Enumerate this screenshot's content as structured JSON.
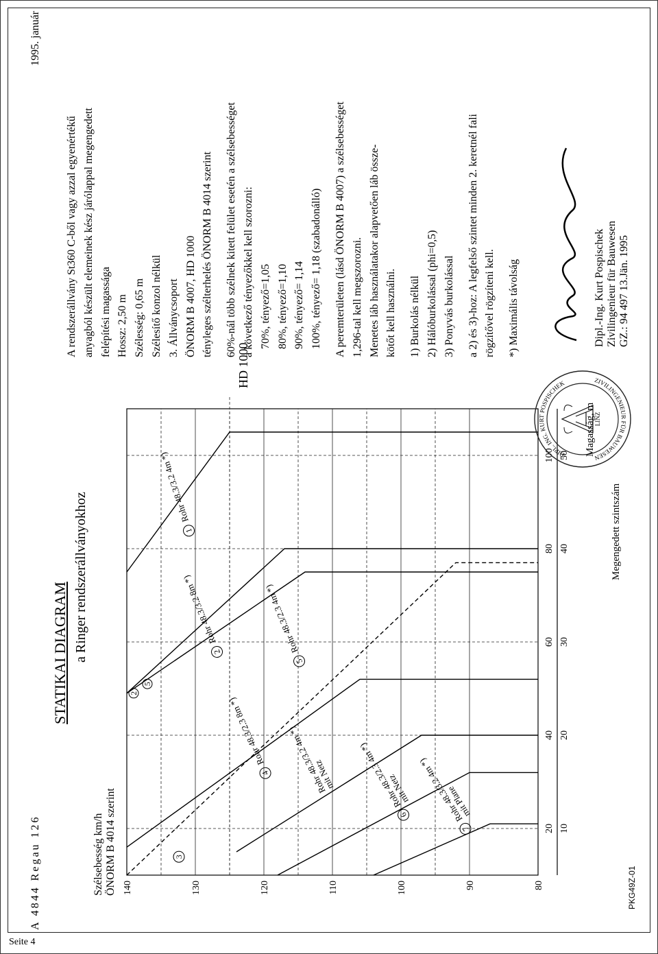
{
  "header": {
    "location": "A  4844 Regau  126",
    "date": "1995. január"
  },
  "title": "STATIKAI DIAGRAM",
  "subtitle": "a Ringer rendszerállványokhoz",
  "chart": {
    "type": "line",
    "ylabel": "Szélsebesség km/h\nÖNORM B 4014 szerint",
    "xlabel_top": "Magasság, m",
    "xlabel_bottom": "Megengedett szintszám",
    "ylim": [
      80,
      140
    ],
    "yticks": [
      80,
      90,
      100,
      110,
      120,
      130,
      140
    ],
    "xticks_top": [
      20,
      40,
      60,
      80,
      100
    ],
    "xticks_bot": [
      10,
      20,
      30,
      40,
      50
    ],
    "grid_solid_y": [
      90,
      100,
      110,
      120,
      130
    ],
    "grid_dash_x": [
      20,
      40,
      60,
      80,
      100
    ],
    "grid_dash_y": [
      95,
      105,
      115,
      125,
      135
    ],
    "hd_annotation": "HD 1000",
    "curve_labels": [
      {
        "num": "①",
        "text": "Rohr 48.3/3.2 4m *)",
        "x": 86,
        "y": 131,
        "angle": -18
      },
      {
        "num": "②",
        "text": "Rohr 48.3/3.2 8m *)",
        "x": 60,
        "y": 127,
        "angle": -22
      },
      {
        "num": "③",
        "text": "",
        "x": 16,
        "y": 132,
        "angle": 0
      },
      {
        "num": "④",
        "text": "Rohr 48.3/2.3 8m *)",
        "x": 34,
        "y": 120,
        "angle": -24
      },
      {
        "num": "⑤",
        "text": "Rohr 48.3/2.3 4m *)",
        "x": 58,
        "y": 115,
        "angle": -22
      },
      {
        "num": "",
        "text": "Rohr 48.3/3.2 4m *)\nmit Netz",
        "x": 28,
        "y": 111,
        "angle": -26
      },
      {
        "num": "⑥",
        "text": "Rohr 48.3/2.3 4m *)\nmit Netz",
        "x": 25,
        "y": 100,
        "angle": -30
      },
      {
        "num": "⑦",
        "text": "Rohr 48.3/3.2 4m *)\nmit Plane",
        "x": 22,
        "y": 91,
        "angle": -32
      }
    ],
    "curves": [
      {
        "id": 1,
        "dashed": false,
        "pts": [
          [
            75,
            140
          ],
          [
            105,
            125
          ],
          [
            105,
            80
          ]
        ]
      },
      {
        "id": 2,
        "dashed": false,
        "pts": [
          [
            49,
            140
          ],
          [
            80,
            117
          ],
          [
            80,
            80
          ]
        ]
      },
      {
        "id": 3,
        "dashed": true,
        "pts": [
          [
            10,
            140
          ],
          [
            77,
            92
          ],
          [
            77,
            80
          ]
        ]
      },
      {
        "id": 4,
        "dashed": false,
        "pts": [
          [
            16,
            140
          ],
          [
            52,
            106
          ],
          [
            52,
            80
          ]
        ]
      },
      {
        "id": 5,
        "dashed": false,
        "pts": [
          [
            49,
            140
          ],
          [
            75,
            114
          ],
          [
            75,
            80
          ]
        ]
      },
      {
        "id": 6,
        "dashed": false,
        "pts": [
          [
            15,
            124
          ],
          [
            40,
            97
          ],
          [
            40,
            80
          ]
        ]
      },
      {
        "id": 7,
        "dashed": false,
        "pts": [
          [
            10,
            118
          ],
          [
            32,
            90
          ],
          [
            32,
            80
          ]
        ]
      },
      {
        "id": 8,
        "dashed": false,
        "pts": [
          [
            10,
            104
          ],
          [
            21,
            87
          ],
          [
            21,
            80
          ]
        ]
      }
    ],
    "axis_color": "#000000",
    "grid_color": "#222222",
    "background_color": "#ffffff"
  },
  "notes": {
    "intro": [
      "A rendszerállvány St360 C-ből vagy azzal egyenértékű",
      "anyagból készült elemeinek kész járólappal megengedett",
      "felépítési magassága",
      "Hossz: 2,50 m",
      "Szélesség: 0,65 m",
      "Szélesítő konzol nélkül",
      "3. Állványcsoport",
      "ÖNORM B 4007, HD 1000",
      "tényleges szélterhelés ÖNORM B 4014 szerint"
    ],
    "factors_head": [
      "60%-nál több szélnek kitett felület esetén a szélsebességet",
      "a következő tényezőkkel kell szorozni:"
    ],
    "factors": [
      "70%, tényező=1,05",
      "80%, tényező=1,10",
      "90%, tényező= 1,14",
      "100%, tényező= 1,18 (szabadonálló)"
    ],
    "perimeter": [
      "A peremterületen (lásd ÖNORM B 4007) a szélsebességet",
      "1,296-tal kell megszorozni.",
      "Menetes láb használatakor alapvetően láb össze-",
      "kötőt kell használni."
    ],
    "cover": [
      "1) Burkolás nélkül",
      "2) Hálóburkolással (phi=0,5)",
      "3) Ponyvás burkolással"
    ],
    "anchor": [
      "a 2) és 3)-hoz: A legfelső szintet minden 2. keretnél fali",
      "rögzítővel rögzíteni kell."
    ],
    "footnote": "*) Maximális távolság"
  },
  "stamp": {
    "ring_text_top": "DIPL. ING. KURT POSPISCHEK",
    "ring_text_bot": "ZIVILINGENIEUR FÜR BAUWESEN",
    "center": "LINZ"
  },
  "signature": {
    "name": "Dipl.-Ing. Kurt Pospischek",
    "title": "Zivilingenieur für Bauwesen",
    "ref": "GZ.: 94 497   13.Jän. 1995"
  },
  "ref_code": "PKG49Z-01",
  "footer": "Seite 4"
}
